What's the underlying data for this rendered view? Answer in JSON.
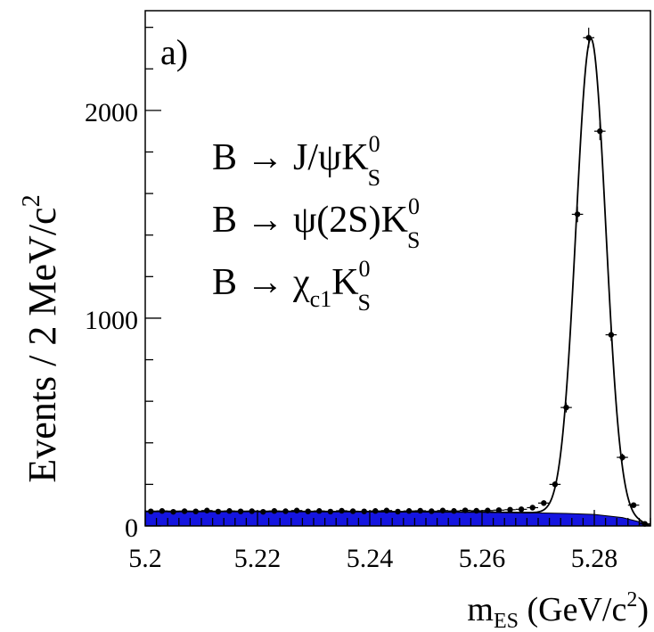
{
  "panel_label": "a)",
  "processes": [
    {
      "lhs": "B → J/ψK",
      "sub": "S",
      "sup": "0"
    },
    {
      "lhs": "B → ψ(2S)K",
      "sub": "S",
      "sup": "0"
    },
    {
      "lhs": "B → χ",
      "mid_sub": "c1",
      "rhs": "K",
      "sub": "S",
      "sup": "0"
    }
  ],
  "colors": {
    "background": "#1515e0",
    "fit": "#000000",
    "points": "#000000"
  },
  "chart_data": {
    "type": "scatter",
    "title": "",
    "xlabel": "m_ES (GeV/c^2)",
    "xlabel_parts": {
      "main": "m",
      "sub": "ES",
      "unit": " (GeV/c",
      "unit_sup": "2",
      "close": ")"
    },
    "ylabel": "Events / 2 MeV/c^2",
    "ylabel_parts": {
      "main": "Events / 2 MeV/c",
      "sup": "2"
    },
    "xlim": [
      5.2,
      5.29
    ],
    "ylim": [
      0,
      2480
    ],
    "x_ticks": [
      5.2,
      5.22,
      5.24,
      5.26,
      5.28
    ],
    "x_tick_labels": [
      "5.2",
      "5.22",
      "5.24",
      "5.26",
      "5.28"
    ],
    "y_ticks": [
      0,
      1000,
      2000
    ],
    "y_tick_labels": [
      "0",
      "1000",
      "2000"
    ],
    "grid": false,
    "legend": "none",
    "series": [
      {
        "kind": "data_points",
        "x": [
          5.201,
          5.203,
          5.205,
          5.207,
          5.209,
          5.211,
          5.213,
          5.215,
          5.217,
          5.219,
          5.221,
          5.223,
          5.225,
          5.227,
          5.229,
          5.231,
          5.233,
          5.235,
          5.237,
          5.239,
          5.241,
          5.243,
          5.245,
          5.247,
          5.249,
          5.251,
          5.253,
          5.255,
          5.257,
          5.259,
          5.261,
          5.263,
          5.265,
          5.267,
          5.269,
          5.271,
          5.273,
          5.275,
          5.277,
          5.279,
          5.281,
          5.283,
          5.285,
          5.287,
          5.289
        ],
        "y": [
          70,
          72,
          68,
          71,
          70,
          74,
          69,
          72,
          70,
          71,
          68,
          72,
          71,
          74,
          70,
          72,
          69,
          73,
          71,
          70,
          72,
          74,
          69,
          72,
          73,
          71,
          74,
          72,
          75,
          73,
          74,
          76,
          78,
          80,
          88,
          110,
          200,
          570,
          1500,
          2350,
          1900,
          920,
          330,
          100,
          10
        ],
        "yerr": [
          8,
          8,
          8,
          8,
          8,
          9,
          8,
          8,
          8,
          8,
          8,
          8,
          8,
          9,
          8,
          8,
          8,
          9,
          8,
          8,
          8,
          9,
          8,
          8,
          9,
          8,
          9,
          8,
          9,
          9,
          9,
          9,
          9,
          9,
          9,
          10,
          14,
          24,
          38,
          48,
          43,
          30,
          18,
          10,
          3
        ]
      }
    ],
    "fit": {
      "kind": "gaussian_plus_argus",
      "peak_mean": 5.2794,
      "peak_sigma": 0.00265,
      "peak_amplitude": 2290,
      "background_level": 70,
      "endpoint": 5.29
    },
    "background_area": {
      "x": [
        5.2,
        5.22,
        5.24,
        5.26,
        5.27,
        5.275,
        5.28,
        5.285,
        5.288,
        5.29
      ],
      "y": [
        70,
        70,
        69,
        67,
        63,
        60,
        55,
        40,
        20,
        0
      ]
    }
  }
}
